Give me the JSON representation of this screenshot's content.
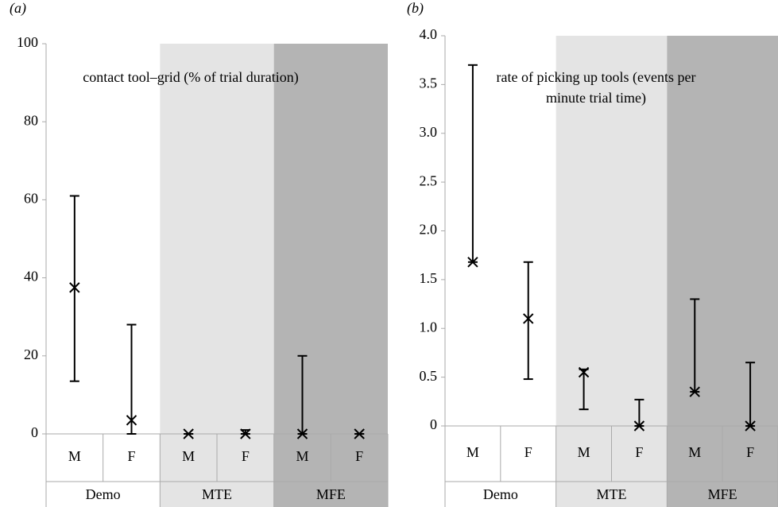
{
  "chart_data": [
    {
      "type": "point-range",
      "panel_label": "(a)",
      "annotation": "contact tool–grid (% of trial duration)",
      "categories": [
        "M",
        "F",
        "M",
        "F",
        "M",
        "F"
      ],
      "group_labels": [
        "Demo",
        "MTE",
        "MFE"
      ],
      "group_colors": [
        "#ffffff",
        "#e4e4e4",
        "#b4b4b4"
      ],
      "color": "#000000",
      "values": [
        37.5,
        3.5,
        0,
        0,
        0,
        0
      ],
      "lower": [
        13.5,
        0,
        0,
        0,
        0,
        0
      ],
      "upper": [
        61,
        28,
        0,
        1,
        20,
        0
      ],
      "ylim": [
        0,
        100
      ],
      "yticks": [
        0,
        20,
        40,
        60,
        80,
        100
      ]
    },
    {
      "type": "point-range",
      "panel_label": "(b)",
      "annotation": "rate of picking up tools (events per minute trial time)",
      "categories": [
        "M",
        "F",
        "M",
        "F",
        "M",
        "F"
      ],
      "group_labels": [
        "Demo",
        "MTE",
        "MFE"
      ],
      "group_colors": [
        "#ffffff",
        "#e4e4e4",
        "#b4b4b4"
      ],
      "color": "#000000",
      "values": [
        1.68,
        1.1,
        0.55,
        0,
        0.35,
        0
      ],
      "lower": [
        1.68,
        0.48,
        0.17,
        0,
        0.35,
        0
      ],
      "upper": [
        3.7,
        1.68,
        0.58,
        0.27,
        1.3,
        0.65
      ],
      "ylim": [
        0,
        4
      ],
      "yticks": [
        0,
        0.5,
        {
          "value": 1,
          "label": "1.0"
        },
        1.5,
        {
          "value": 2,
          "label": "2.0"
        },
        2.5,
        {
          "value": 3,
          "label": "3.0"
        },
        3.5,
        {
          "value": 4,
          "label": "4.0"
        }
      ]
    }
  ]
}
